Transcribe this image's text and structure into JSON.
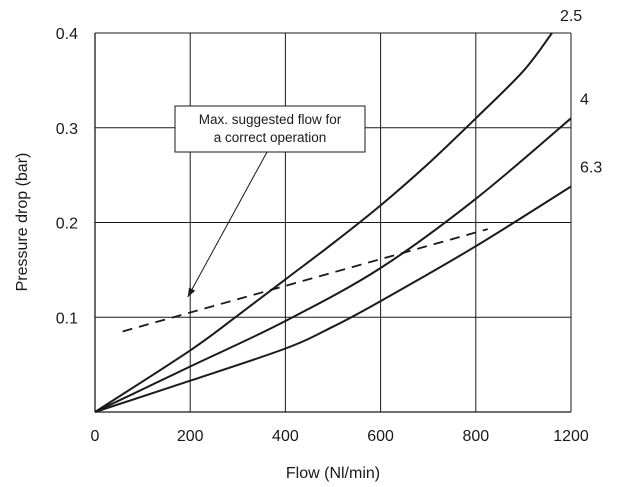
{
  "chart_data": {
    "type": "line",
    "title": "",
    "xlabel": "Flow (Nl/min)",
    "ylabel": "Pressure drop (bar)",
    "xlim": [
      0,
      1200
    ],
    "ylim": [
      0,
      0.4
    ],
    "xticks": [
      0,
      200,
      400,
      600,
      800,
      1200
    ],
    "xtick_labels": [
      "0",
      "200",
      "400",
      "600",
      "800",
      "1200"
    ],
    "yticks": [
      0.1,
      0.2,
      0.3,
      0.4
    ],
    "ytick_labels": [
      "0.1",
      "0.2",
      "0.3",
      "0.4"
    ],
    "grid": true,
    "series": [
      {
        "name": "2.5",
        "points": [
          [
            0,
            0
          ],
          [
            200,
            0.065
          ],
          [
            300,
            0.102
          ],
          [
            400,
            0.14
          ],
          [
            500,
            0.178
          ],
          [
            600,
            0.218
          ],
          [
            700,
            0.262
          ],
          [
            800,
            0.31
          ],
          [
            900,
            0.36
          ],
          [
            960,
            0.4
          ]
        ]
      },
      {
        "name": "4",
        "points": [
          [
            0,
            0
          ],
          [
            200,
            0.048
          ],
          [
            400,
            0.096
          ],
          [
            600,
            0.152
          ],
          [
            800,
            0.225
          ],
          [
            1000,
            0.31
          ]
        ]
      },
      {
        "name": "6.3",
        "points": [
          [
            0,
            0
          ],
          [
            200,
            0.033
          ],
          [
            400,
            0.067
          ],
          [
            500,
            0.09
          ],
          [
            600,
            0.117
          ],
          [
            800,
            0.175
          ],
          [
            1000,
            0.238
          ]
        ]
      }
    ],
    "limit_line": {
      "style": "dashed",
      "points": [
        [
          -5,
          0.085
        ],
        [
          825,
          0.193
        ]
      ]
    },
    "annotation": {
      "lines": [
        "Max. suggested flow for",
        "a correct operation"
      ],
      "arrow_target": [
        300,
        0.115
      ]
    }
  }
}
